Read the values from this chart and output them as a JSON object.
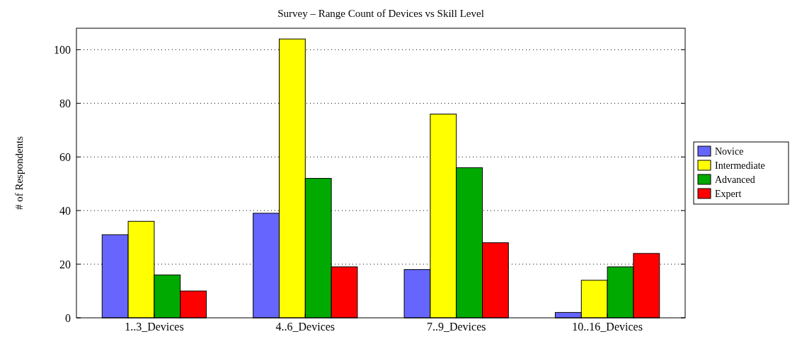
{
  "chart_data": {
    "type": "bar",
    "title": "Survey – Range Count of Devices vs Skill Level",
    "ylabel": "# of Respondents",
    "categories": [
      "1..3_Devices",
      "4..6_Devices",
      "7..9_Devices",
      "10..16_Devices"
    ],
    "series": [
      {
        "name": "Novice",
        "color": "#6666ff",
        "values": [
          31,
          39,
          18,
          2
        ]
      },
      {
        "name": "Intermediate",
        "color": "#ffff00",
        "values": [
          36,
          104,
          76,
          14
        ]
      },
      {
        "name": "Advanced",
        "color": "#00aa00",
        "values": [
          16,
          52,
          56,
          19
        ]
      },
      {
        "name": "Expert",
        "color": "#ff0000",
        "values": [
          10,
          19,
          28,
          24
        ]
      }
    ],
    "ylim": [
      0,
      108
    ],
    "yticks": [
      0,
      20,
      40,
      60,
      80,
      100
    ],
    "grid": "y",
    "legend": "right"
  }
}
